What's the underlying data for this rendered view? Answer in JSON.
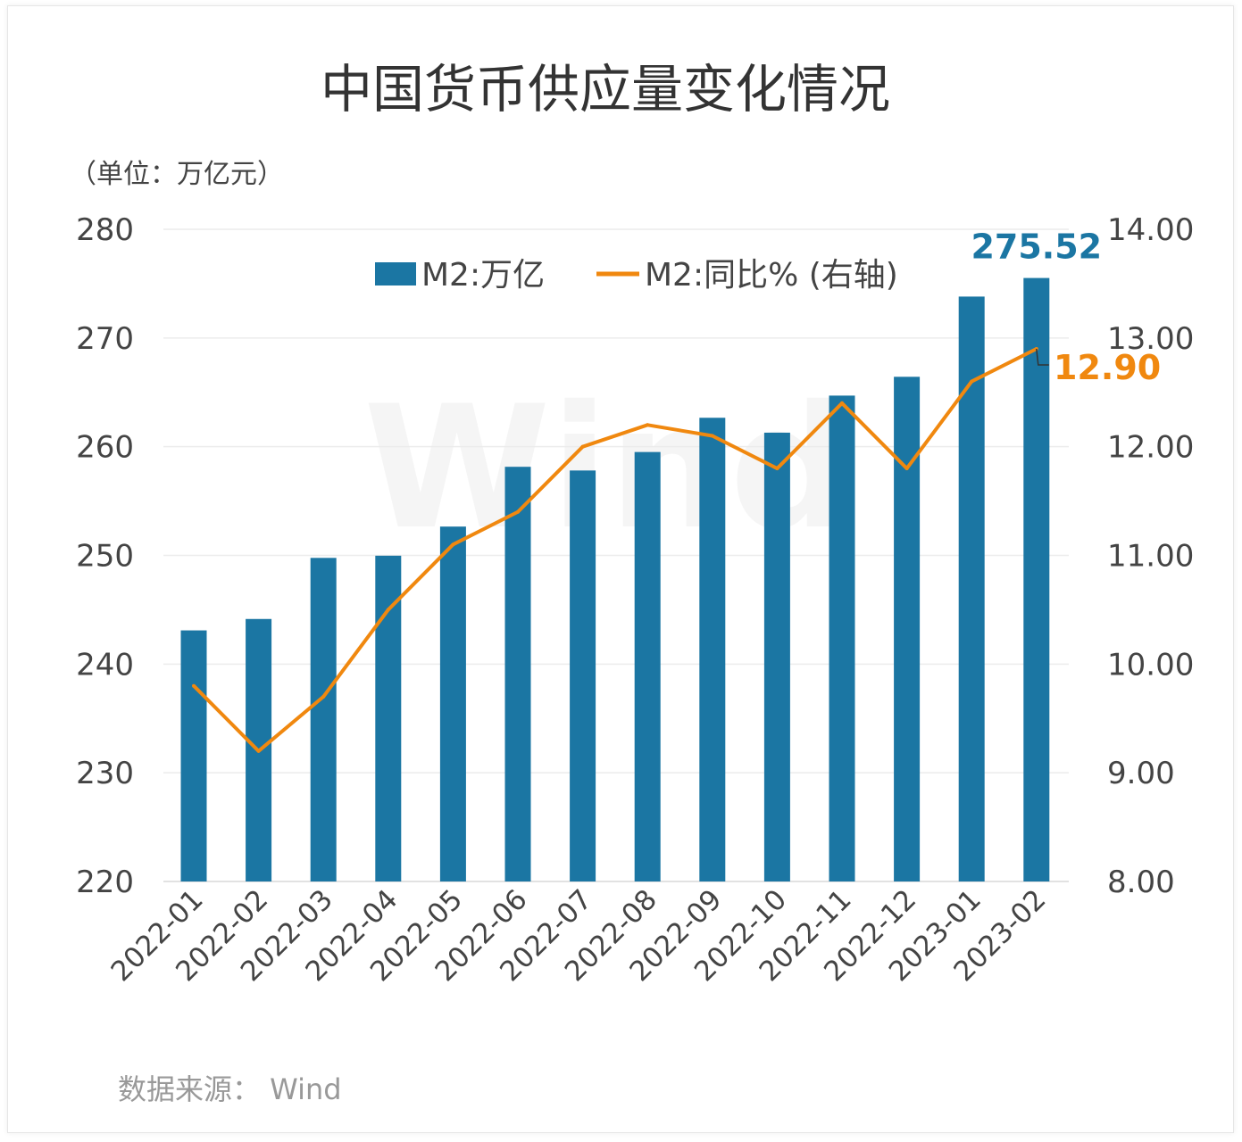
{
  "chart_data": {
    "type": "bar+line",
    "title": "中国货币供应量变化情况",
    "unit_label": "（单位：万亿元）",
    "source": "数据来源： Wind",
    "watermark": "Wind",
    "categories": [
      "2022-01",
      "2022-02",
      "2022-03",
      "2022-04",
      "2022-05",
      "2022-06",
      "2022-07",
      "2022-08",
      "2022-09",
      "2022-10",
      "2022-11",
      "2022-12",
      "2023-01",
      "2023-02"
    ],
    "series": [
      {
        "name": "M2:万亿",
        "type": "bar",
        "axis": "left",
        "color": "#1b76a3",
        "values": [
          243.1,
          244.15,
          249.77,
          249.97,
          252.65,
          258.15,
          257.81,
          259.51,
          262.66,
          261.29,
          264.7,
          266.43,
          273.81,
          275.52
        ]
      },
      {
        "name": "M2:同比% (右轴)",
        "type": "line",
        "axis": "right",
        "color": "#f0880f",
        "values": [
          9.8,
          9.2,
          9.7,
          10.5,
          11.1,
          11.4,
          12.0,
          12.2,
          12.1,
          11.8,
          12.4,
          11.8,
          12.6,
          12.9
        ]
      }
    ],
    "left_axis": {
      "range": [
        220,
        280
      ],
      "ticks": [
        "220",
        "230",
        "240",
        "250",
        "260",
        "270",
        "280"
      ]
    },
    "right_axis": {
      "range": [
        8,
        14
      ],
      "ticks": [
        "8.00",
        "9.00",
        "10.00",
        "11.00",
        "12.00",
        "13.00",
        "14.00"
      ]
    },
    "annotations": [
      {
        "text": "275.52",
        "series": 0,
        "color": "#1b76a3"
      },
      {
        "text": "12.90",
        "series": 1,
        "color": "#f0880f"
      }
    ],
    "grid": true,
    "legend": "top-center"
  }
}
